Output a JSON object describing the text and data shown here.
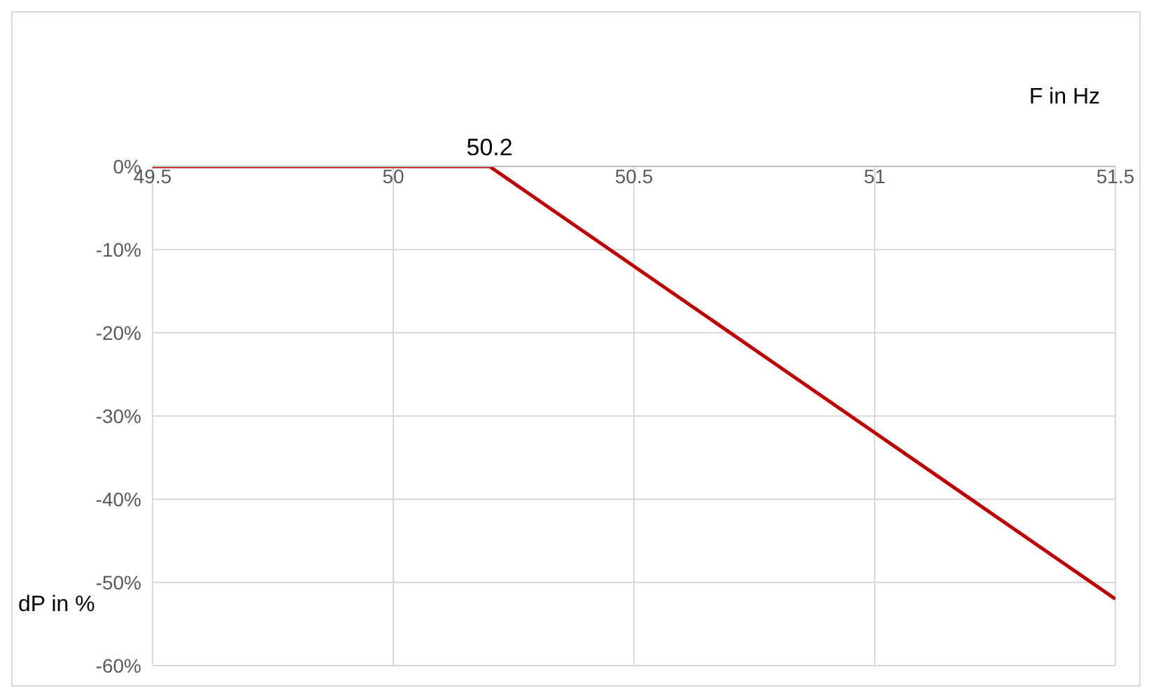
{
  "chart_data": {
    "type": "line",
    "xlabel": "F in Hz",
    "ylabel": "dP in %",
    "x": [
      49.5,
      50.2,
      51.5
    ],
    "series": [
      {
        "color": "#c00000",
        "values": [
          0,
          0,
          -52
        ]
      }
    ],
    "xlim": [
      49.5,
      51.5
    ],
    "xticks": [
      49.5,
      50,
      50.5,
      51,
      51.5
    ],
    "ylim": [
      -60,
      0
    ],
    "yticks": [
      {
        "value": 0,
        "label": "0%"
      },
      {
        "value": -10,
        "label": "-10%"
      },
      {
        "value": -20,
        "label": "-20%"
      },
      {
        "value": -30,
        "label": "-30%"
      },
      {
        "value": -40,
        "label": "-40%"
      },
      {
        "value": -50,
        "label": "-50%"
      },
      {
        "value": -60,
        "label": "-60%"
      }
    ],
    "grid": true,
    "annotations": [
      {
        "text": "50.2",
        "x": 50.2,
        "y": 0
      }
    ]
  }
}
